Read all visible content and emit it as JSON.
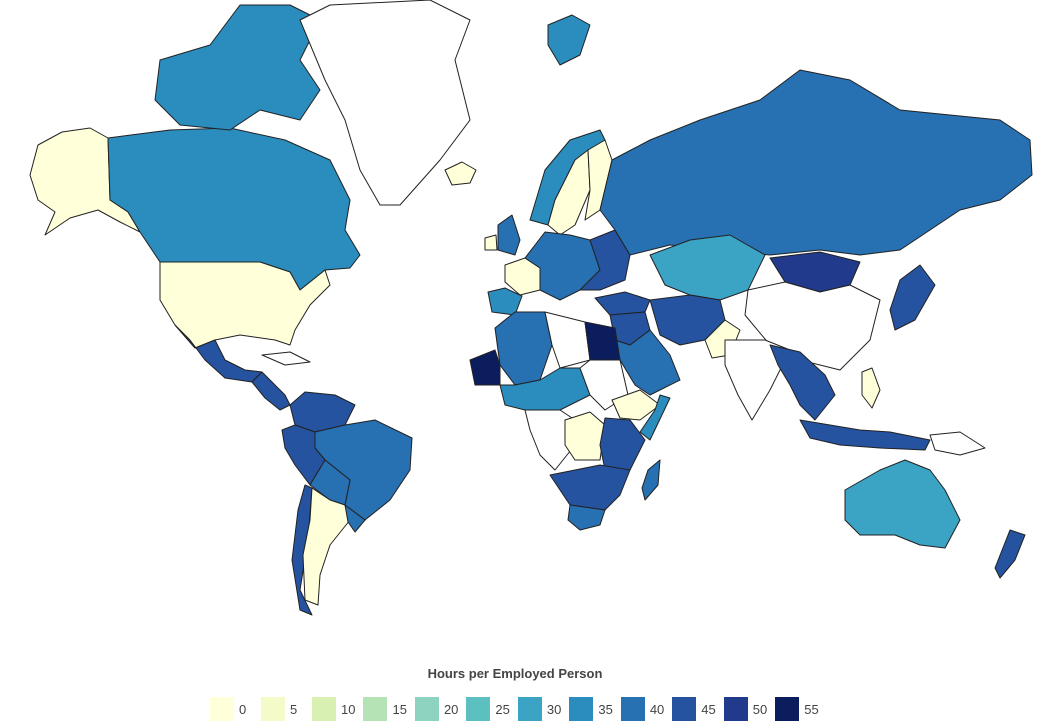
{
  "legend": {
    "title": "Hours per Employed Person",
    "items": [
      {
        "label": "0",
        "color": "#ffffd9"
      },
      {
        "label": "5",
        "color": "#f4fbc9"
      },
      {
        "label": "10",
        "color": "#d9f0b3"
      },
      {
        "label": "15",
        "color": "#b6e3b6"
      },
      {
        "label": "20",
        "color": "#8dd3bf"
      },
      {
        "label": "25",
        "color": "#5dc0c0"
      },
      {
        "label": "30",
        "color": "#3ba3c3"
      },
      {
        "label": "35",
        "color": "#2b8cbe"
      },
      {
        "label": "40",
        "color": "#2770b2"
      },
      {
        "label": "45",
        "color": "#2553a0"
      },
      {
        "label": "50",
        "color": "#213a8b"
      },
      {
        "label": "55",
        "color": "#0b1d5c"
      }
    ]
  },
  "map": {
    "regions": [
      {
        "name": "alaska",
        "fill": "#ffffd9"
      },
      {
        "name": "canada",
        "fill": "#2b8cbe"
      },
      {
        "name": "canadian-arctic-islands",
        "fill": "#2b8cbe"
      },
      {
        "name": "greenland",
        "fill": "#ffffff"
      },
      {
        "name": "iceland",
        "fill": "#ffffd9"
      },
      {
        "name": "united-states",
        "fill": "#ffffd9"
      },
      {
        "name": "mexico",
        "fill": "#2553a0"
      },
      {
        "name": "central-america",
        "fill": "#2553a0"
      },
      {
        "name": "cuba",
        "fill": "#ffffff"
      },
      {
        "name": "venezuela-colombia",
        "fill": "#2553a0"
      },
      {
        "name": "brazil",
        "fill": "#2770b2"
      },
      {
        "name": "peru",
        "fill": "#2553a0"
      },
      {
        "name": "bolivia",
        "fill": "#2770b2"
      },
      {
        "name": "chile",
        "fill": "#2553a0"
      },
      {
        "name": "argentina",
        "fill": "#ffffd9"
      },
      {
        "name": "uruguay",
        "fill": "#2770b2"
      },
      {
        "name": "scandinavia",
        "fill": "#ffffd9"
      },
      {
        "name": "norway-coast",
        "fill": "#2b8cbe"
      },
      {
        "name": "finland",
        "fill": "#ffffd9"
      },
      {
        "name": "united-kingdom",
        "fill": "#2770b2"
      },
      {
        "name": "ireland",
        "fill": "#ffffd9"
      },
      {
        "name": "france",
        "fill": "#ffffd9"
      },
      {
        "name": "iberia",
        "fill": "#2b8cbe"
      },
      {
        "name": "central-europe",
        "fill": "#2770b2"
      },
      {
        "name": "eastern-europe",
        "fill": "#2553a0"
      },
      {
        "name": "russia",
        "fill": "#2770b2"
      },
      {
        "name": "svalbard",
        "fill": "#2b8cbe"
      },
      {
        "name": "kazakhstan",
        "fill": "#3ba3c3"
      },
      {
        "name": "mongolia",
        "fill": "#213a8b"
      },
      {
        "name": "china",
        "fill": "#ffffff"
      },
      {
        "name": "turkey",
        "fill": "#2553a0"
      },
      {
        "name": "middle-east",
        "fill": "#2553a0"
      },
      {
        "name": "saudi-arabia",
        "fill": "#2770b2"
      },
      {
        "name": "iran-afghanistan",
        "fill": "#2553a0"
      },
      {
        "name": "pakistan",
        "fill": "#ffffd9"
      },
      {
        "name": "india",
        "fill": "#ffffff"
      },
      {
        "name": "southeast-asia",
        "fill": "#2553a0"
      },
      {
        "name": "japan",
        "fill": "#2553a0"
      },
      {
        "name": "philippines",
        "fill": "#ffffd9"
      },
      {
        "name": "indonesia",
        "fill": "#2553a0"
      },
      {
        "name": "papua",
        "fill": "#ffffff"
      },
      {
        "name": "australia",
        "fill": "#3ba3c3"
      },
      {
        "name": "new-zealand",
        "fill": "#2553a0"
      },
      {
        "name": "morocco-algeria",
        "fill": "#2770b2"
      },
      {
        "name": "libya",
        "fill": "#ffffff"
      },
      {
        "name": "egypt",
        "fill": "#0b1d5c"
      },
      {
        "name": "mauritania",
        "fill": "#0b1d5c"
      },
      {
        "name": "sahel",
        "fill": "#2b8cbe"
      },
      {
        "name": "sudan",
        "fill": "#ffffff"
      },
      {
        "name": "ethiopia",
        "fill": "#ffffd9"
      },
      {
        "name": "somalia",
        "fill": "#2b8cbe"
      },
      {
        "name": "central-africa",
        "fill": "#ffffff"
      },
      {
        "name": "dr-congo",
        "fill": "#ffffd9"
      },
      {
        "name": "east-africa",
        "fill": "#2553a0"
      },
      {
        "name": "southern-africa",
        "fill": "#2553a0"
      },
      {
        "name": "south-africa",
        "fill": "#2770b2"
      },
      {
        "name": "madagascar",
        "fill": "#2770b2"
      }
    ]
  }
}
